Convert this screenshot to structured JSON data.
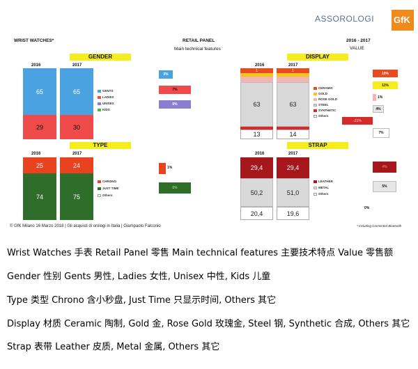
{
  "header": {
    "left_title": "WRIST WATCHES*",
    "center_title": "RETAIL PANEL",
    "center_subtitle": "Main technical features",
    "right_years": "2016 - 2017",
    "right_value": "VALUE",
    "logo_assorologi": "ASSOROLOGI",
    "logo_gfk": "GfK"
  },
  "footer": {
    "credit": "© GfK Milano 16 Marzo 2018 | Gli acquisti di orologi in Italia | Giampaolo Falconio",
    "note": "* Including Connected Bluetooth"
  },
  "colors": {
    "gents": "#4aa3e0",
    "ladies": "#ef4b4b",
    "unisex": "#8a7fcf",
    "kids": "#55b24a",
    "chrono": "#e8421f",
    "justtime": "#2e6e2a",
    "ceramic": "#e84b20",
    "gold": "#f5c51c",
    "rosegold": "#f2b6b0",
    "steel": "#d8d8d8",
    "synthetic": "#d62a2a",
    "leather": "#a5171b",
    "metal": "#d9d9d9",
    "highlight": "#f5ee1c"
  },
  "chart_data": [
    {
      "type": "bar",
      "title": "GENDER",
      "categories": [
        "2016",
        "2017"
      ],
      "series": [
        {
          "name": "Gents",
          "values": [
            65,
            65
          ]
        },
        {
          "name": "Ladies",
          "values": [
            29,
            30
          ]
        },
        {
          "name": "Unisex",
          "values": [
            null,
            null
          ]
        },
        {
          "name": "Kids",
          "values": [
            null,
            null
          ]
        }
      ],
      "legend": [
        "GENTS",
        "LADIES",
        "UNISEX",
        "KIDS"
      ],
      "change": [
        "3%",
        "7%",
        "5%"
      ]
    },
    {
      "type": "bar",
      "title": "TYPE",
      "categories": [
        "2016",
        "2017"
      ],
      "series": [
        {
          "name": "Chrono",
          "values": [
            25,
            24
          ]
        },
        {
          "name": "Just Time",
          "values": [
            74,
            75
          ]
        },
        {
          "name": "Others",
          "values": [
            null,
            null
          ]
        }
      ],
      "legend": [
        "CHRONO",
        "JUST TIME",
        "Others"
      ],
      "change": [
        "1%",
        "5%"
      ]
    },
    {
      "type": "bar",
      "title": "DISPLAY",
      "categories": [
        "2016",
        "2017"
      ],
      "series": [
        {
          "name": "Ceramic",
          "values": [
            1,
            1
          ]
        },
        {
          "name": "Gold",
          "values": [
            null,
            null
          ]
        },
        {
          "name": "Rose Gold",
          "values": [
            null,
            null
          ]
        },
        {
          "name": "Steel",
          "values": [
            63,
            63
          ]
        },
        {
          "name": "Synthetic",
          "values": [
            null,
            null
          ]
        },
        {
          "name": "Others",
          "values": [
            13,
            14
          ]
        }
      ],
      "legend": [
        "CERAMIC",
        "GOLD",
        "ROSE GOLD",
        "STEEL",
        "SYNTHETIC",
        "Others"
      ],
      "change": [
        "10%",
        "11%",
        "1%",
        "4%",
        "-21%",
        "7%"
      ]
    },
    {
      "type": "bar",
      "title": "STRAP",
      "categories": [
        "2016",
        "2017"
      ],
      "series": [
        {
          "name": "Leather",
          "values": [
            29.4,
            29.4
          ]
        },
        {
          "name": "Metal",
          "values": [
            50.2,
            51.0
          ]
        },
        {
          "name": "Others",
          "values": [
            20.4,
            19.6
          ]
        }
      ],
      "value_labels": {
        "2016": [
          "29,4",
          "50,2",
          "20,4"
        ],
        "2017": [
          "29,4",
          "51,0",
          "19,6"
        ]
      },
      "legend": [
        "LEATHER",
        "METAL",
        "Others"
      ],
      "change": [
        "4%",
        "5%",
        "0%"
      ]
    }
  ],
  "labels": {
    "gender": {
      "y2016": "2016",
      "y2017": "2017",
      "v_gents_16": "65",
      "v_gents_17": "65",
      "v_ladies_16": "29",
      "v_ladies_17": "30"
    },
    "type": {
      "y2016": "2016",
      "y2017": "2017",
      "v_chrono_16": "25",
      "v_chrono_17": "24",
      "v_just_16": "74",
      "v_just_17": "75"
    },
    "display": {
      "y2016": "2016",
      "y2017": "2017",
      "v_ceramic_16": "1",
      "v_ceramic_17": "1",
      "v_steel_16": "63",
      "v_steel_17": "63",
      "v_others_16": "13",
      "v_others_17": "14"
    },
    "strap": {
      "y2016": "2016",
      "y2017": "2017"
    }
  },
  "translation_lines": [
    "Wrist Watches 手表    Retail Panel 零售  Main technical features 主要技术特点  Value 零售额",
    "Gender 性别  Gents 男性, Ladies 女性, Unisex 中性, Kids 儿童",
    "Type 类型    Chrono 含小秒盘, Just Time 只显示时间, Others 其它",
    "Display 材质  Ceramic 陶制, Gold 金, Rose Gold 玫瑰金, Steel 钢, Synthetic 合成, Others 其它",
    "Strap 表带  Leather 皮质, Metal 金属, Others 其它"
  ]
}
